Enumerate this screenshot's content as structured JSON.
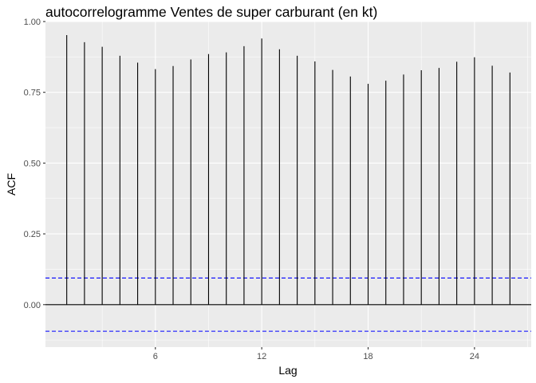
{
  "chart_data": {
    "type": "bar",
    "title": "autocorrelogramme Ventes de super carburant (en kt)",
    "xlabel": "Lag",
    "ylabel": "ACF",
    "x": [
      1,
      2,
      3,
      4,
      5,
      6,
      7,
      8,
      9,
      10,
      11,
      12,
      13,
      14,
      15,
      16,
      17,
      18,
      19,
      20,
      21,
      22,
      23,
      24,
      25,
      26
    ],
    "values": [
      0.952,
      0.927,
      0.911,
      0.879,
      0.855,
      0.832,
      0.843,
      0.866,
      0.885,
      0.891,
      0.913,
      0.94,
      0.902,
      0.879,
      0.859,
      0.829,
      0.806,
      0.78,
      0.791,
      0.813,
      0.828,
      0.836,
      0.858,
      0.874,
      0.844,
      0.82
    ],
    "xlim": [
      -0.2,
      27.2
    ],
    "ylim": [
      -0.15,
      1.0
    ],
    "x_ticks": [
      6,
      12,
      18,
      24
    ],
    "x_tick_labels": [
      "6",
      "12",
      "18",
      "24"
    ],
    "y_ticks": [
      0.0,
      0.25,
      0.5,
      0.75,
      1.0
    ],
    "y_tick_labels": [
      "0.00",
      "0.25",
      "0.50",
      "0.75",
      "1.00"
    ],
    "confidence_bounds": [
      0.094,
      -0.094
    ],
    "grid": true,
    "colors": {
      "panel_background": "#ebebeb",
      "grid": "#ffffff",
      "bars": "#000000",
      "confidence": "#0000ff",
      "zero_line": "#000000"
    }
  }
}
